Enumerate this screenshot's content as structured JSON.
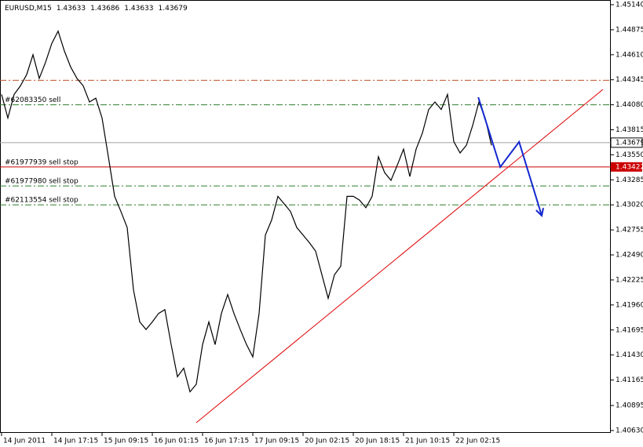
{
  "chart_data": {
    "type": "line",
    "symbol": "EURUSD,M15",
    "ohlc": [
      1.43633,
      1.43686,
      1.43633,
      1.43679
    ],
    "categories": [
      "14 Jun 2011",
      null,
      null,
      null,
      null,
      null,
      null,
      null,
      "14 Jun 17:15",
      null,
      null,
      null,
      null,
      null,
      null,
      null,
      "15 Jun 09:15",
      null,
      null,
      null,
      null,
      null,
      null,
      null,
      "16 Jun 01:15",
      null,
      null,
      null,
      null,
      null,
      null,
      null,
      "16 Jun 17:15",
      null,
      null,
      null,
      null,
      null,
      null,
      null,
      "17 Jun 09:15",
      null,
      null,
      null,
      null,
      null,
      null,
      null,
      "20 Jun 02:15",
      null,
      null,
      null,
      null,
      null,
      null,
      null,
      "20 Jun 18:15",
      null,
      null,
      null,
      null,
      null,
      null,
      null,
      "21 Jun 10:15",
      null,
      null,
      null,
      null,
      null,
      null,
      null,
      "22 Jun 02:15",
      null,
      null,
      null,
      null,
      null,
      null
    ],
    "series": [
      {
        "color": "#000000",
        "values": [
          1.4419,
          1.4394,
          1.4419,
          1.4428,
          1.444,
          1.4461,
          1.4436,
          1.4453,
          1.4473,
          1.4486,
          1.4465,
          1.4448,
          1.4436,
          1.4428,
          1.4411,
          1.4415,
          1.4394,
          1.4353,
          1.4311,
          1.4295,
          1.4278,
          1.4212,
          1.4178,
          1.417,
          1.4178,
          1.4187,
          1.4191,
          1.4154,
          1.412,
          1.4129,
          1.4104,
          1.4112,
          1.4154,
          1.4178,
          1.4154,
          1.4187,
          1.4207,
          1.4187,
          1.417,
          1.4154,
          1.4141,
          1.4187,
          1.427,
          1.4286,
          1.4311,
          1.4303,
          1.4295,
          1.4278,
          1.427,
          1.4262,
          1.4253,
          1.4228,
          1.4203,
          1.4228,
          1.4237,
          1.4311,
          1.4311,
          1.4307,
          1.4299,
          1.4311,
          1.4353,
          1.4336,
          1.4328,
          1.4344,
          1.4361,
          1.4332,
          1.4361,
          1.4378,
          1.4403,
          1.4411,
          1.4403,
          1.4419,
          1.4369,
          1.4357,
          1.4365,
          1.4386,
          1.4411,
          1.4394,
          1.4365
        ]
      }
    ],
    "ylim": [
      1.40605,
      1.4514
    ],
    "yticks": [
      {
        "value": 1.4514,
        "label": "1.45140"
      },
      1.44875,
      {
        "value": 1.4461,
        "label": "1.44610"
      },
      1.44345,
      {
        "value": 1.4408,
        "label": "1.44080"
      },
      1.43815,
      {
        "value": 1.4355,
        "label": "1.43550"
      },
      1.43285,
      {
        "value": 1.4302,
        "label": "1.43020"
      },
      1.42755,
      {
        "value": 1.4249,
        "label": "1.42490"
      },
      1.42225,
      {
        "value": 1.4196,
        "label": "1.41960"
      },
      1.41695,
      {
        "value": 1.4143,
        "label": "1.41430"
      },
      1.41165,
      1.40895,
      {
        "value": 1.4063,
        "label": "1.40630"
      }
    ],
    "levels": [
      {
        "value": 1.4434,
        "color": "#c0502a"
      },
      {
        "value": 1.4408,
        "color": "#2e7d2e",
        "label": "#62083350 sell"
      },
      {
        "value": 1.43422,
        "color": "#cc0000",
        "label": "#61977939 sell stop"
      },
      {
        "value": 1.4322,
        "color": "#2e7d2e",
        "label": "#61977980 sell stop"
      },
      {
        "value": 1.4302,
        "color": "#2e7d2e",
        "label": "#62113554 sell stop"
      }
    ],
    "bid": {
      "value": 1.43679,
      "color": "#a0a0a0"
    },
    "stop_tag": {
      "value": 1.43422,
      "color": "#cc0000"
    },
    "trendline": {
      "x": [
        31,
        95.75
      ],
      "values": [
        1.40713,
        1.44243
      ],
      "color": "#dd0000"
    },
    "forecast": {
      "x": [
        75.9,
        79.4,
        82.4,
        86
      ],
      "values": [
        1.4416,
        1.43421,
        1.43687,
        1.42906
      ],
      "color": "#1428d0"
    }
  }
}
